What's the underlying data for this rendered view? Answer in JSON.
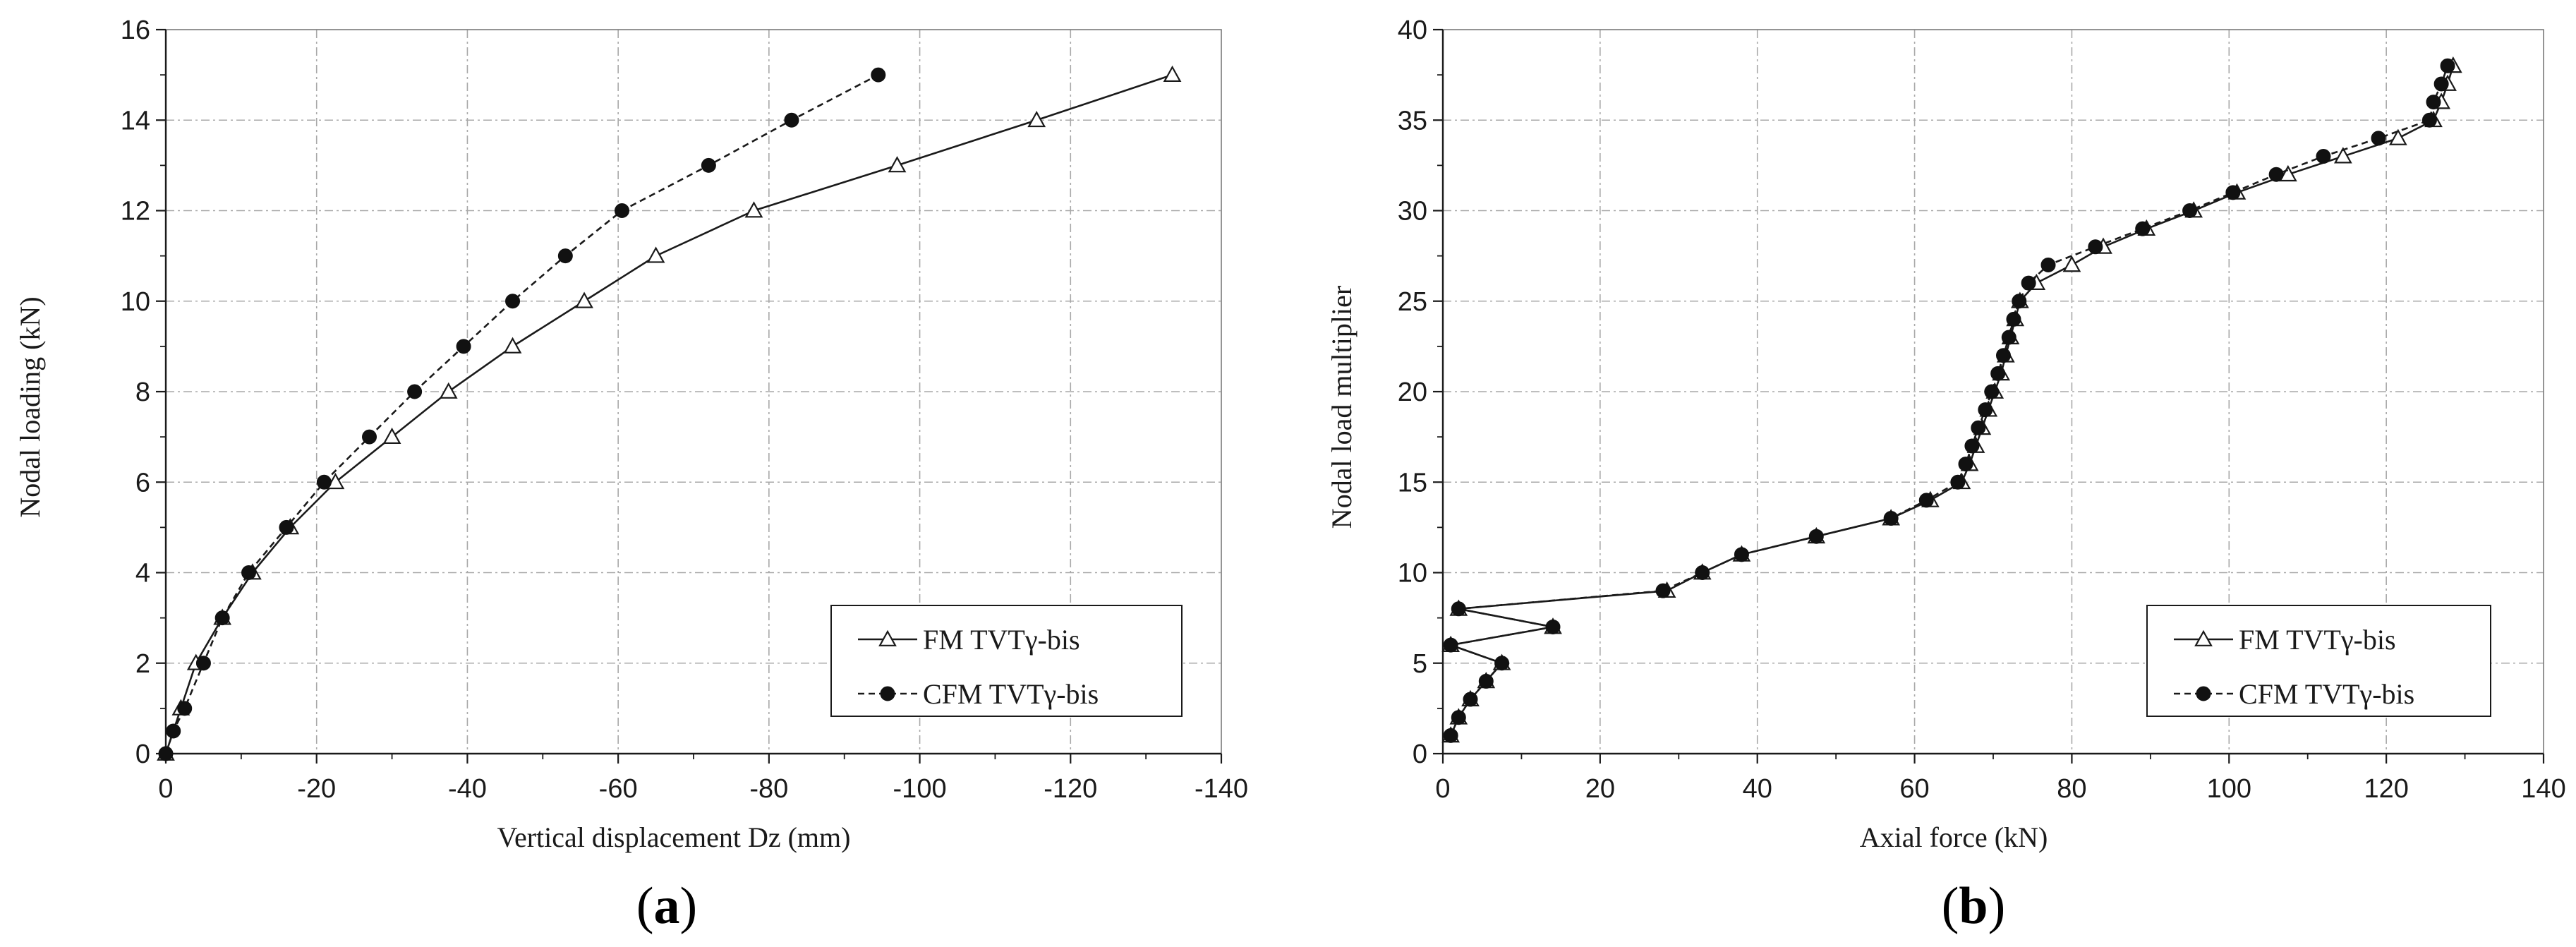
{
  "chart_data": [
    {
      "type": "line",
      "panel_label": "a",
      "title": "",
      "xlabel": "Vertical displacement Dz (mm)",
      "ylabel": "Nodal loading (kN)",
      "xlim": [
        0,
        -140
      ],
      "ylim": [
        0,
        16
      ],
      "x_axis_reversed": true,
      "x_ticks": [
        0,
        -20,
        -40,
        -60,
        -80,
        -100,
        -120,
        -140
      ],
      "y_ticks": [
        0,
        2,
        4,
        6,
        8,
        10,
        12,
        14,
        16
      ],
      "grid": true,
      "legend_position": "bottom-right",
      "series": [
        {
          "name": "FM TVTγ-bis",
          "line_style": "solid",
          "marker": "triangle-open",
          "color": "#1a1a1a",
          "points": [
            [
              0,
              0
            ],
            [
              -2,
              1
            ],
            [
              -4,
              2
            ],
            [
              -7.5,
              3
            ],
            [
              -11.5,
              4
            ],
            [
              -16.5,
              5
            ],
            [
              -22.5,
              6
            ],
            [
              -30,
              7
            ],
            [
              -37.5,
              8
            ],
            [
              -46,
              9
            ],
            [
              -55.5,
              10
            ],
            [
              -65,
              11
            ],
            [
              -78,
              12
            ],
            [
              -97,
              13
            ],
            [
              -115.5,
              14
            ],
            [
              -133.5,
              15
            ]
          ]
        },
        {
          "name": "CFM TVTγ-bis",
          "line_style": "dashed",
          "marker": "circle-filled",
          "color": "#1a1a1a",
          "points": [
            [
              0,
              0
            ],
            [
              -1,
              0.5
            ],
            [
              -2.5,
              1
            ],
            [
              -5,
              2
            ],
            [
              -7.5,
              3
            ],
            [
              -11,
              4
            ],
            [
              -16,
              5
            ],
            [
              -21,
              6
            ],
            [
              -27,
              7
            ],
            [
              -33,
              8
            ],
            [
              -39.5,
              9
            ],
            [
              -46,
              10
            ],
            [
              -53,
              11
            ],
            [
              -60.5,
              12
            ],
            [
              -72,
              13
            ],
            [
              -83,
              14
            ],
            [
              -94.5,
              15
            ]
          ]
        }
      ]
    },
    {
      "type": "line",
      "panel_label": "b",
      "title": "",
      "xlabel": "Axial force (kN)",
      "ylabel": "Nodal load multiplier",
      "xlim": [
        0,
        140
      ],
      "ylim": [
        0,
        40
      ],
      "x_ticks": [
        0,
        20,
        40,
        60,
        80,
        100,
        120,
        140
      ],
      "y_ticks": [
        0,
        5,
        10,
        15,
        20,
        25,
        30,
        35,
        40
      ],
      "grid": true,
      "legend_position": "bottom-right",
      "series": [
        {
          "name": "FM TVTγ-bis",
          "line_style": "solid",
          "marker": "triangle-open",
          "color": "#1a1a1a",
          "points": [
            [
              1,
              1
            ],
            [
              2,
              2
            ],
            [
              3.5,
              3
            ],
            [
              5.5,
              4
            ],
            [
              7.5,
              5
            ],
            [
              1,
              6
            ],
            [
              14,
              7
            ],
            [
              2,
              8
            ],
            [
              28.5,
              9
            ],
            [
              33,
              10
            ],
            [
              38,
              11
            ],
            [
              47.5,
              12
            ],
            [
              57,
              13
            ],
            [
              62,
              14
            ],
            [
              66,
              15
            ],
            [
              67,
              16
            ],
            [
              67.8,
              17
            ],
            [
              68.6,
              18
            ],
            [
              69.4,
              19
            ],
            [
              70.2,
              20
            ],
            [
              71,
              21
            ],
            [
              71.6,
              22
            ],
            [
              72.2,
              23
            ],
            [
              72.8,
              24
            ],
            [
              73.4,
              25
            ],
            [
              75.5,
              26
            ],
            [
              80,
              27
            ],
            [
              84,
              28
            ],
            [
              89.5,
              29
            ],
            [
              95.5,
              30
            ],
            [
              101,
              31
            ],
            [
              107.5,
              32
            ],
            [
              114.5,
              33
            ],
            [
              121.5,
              34
            ],
            [
              126,
              35
            ],
            [
              127,
              36
            ],
            [
              127.8,
              37
            ],
            [
              128.5,
              38
            ]
          ]
        },
        {
          "name": "CFM TVTγ-bis",
          "line_style": "dashed",
          "marker": "circle-filled",
          "color": "#1a1a1a",
          "points": [
            [
              1,
              1
            ],
            [
              2,
              2
            ],
            [
              3.5,
              3
            ],
            [
              5.5,
              4
            ],
            [
              7.5,
              5
            ],
            [
              1,
              6
            ],
            [
              14,
              7
            ],
            [
              2,
              8
            ],
            [
              28,
              9
            ],
            [
              33,
              10
            ],
            [
              38,
              11
            ],
            [
              47.5,
              12
            ],
            [
              57,
              13
            ],
            [
              61.5,
              14
            ],
            [
              65.5,
              15
            ],
            [
              66.5,
              16
            ],
            [
              67.3,
              17
            ],
            [
              68.1,
              18
            ],
            [
              69,
              19
            ],
            [
              69.8,
              20
            ],
            [
              70.6,
              21
            ],
            [
              71.3,
              22
            ],
            [
              72,
              23
            ],
            [
              72.6,
              24
            ],
            [
              73.3,
              25
            ],
            [
              74.5,
              26
            ],
            [
              77,
              27
            ],
            [
              83,
              28
            ],
            [
              89,
              29
            ],
            [
              95,
              30
            ],
            [
              100.5,
              31
            ],
            [
              106,
              32
            ],
            [
              112,
              33
            ],
            [
              119,
              34
            ],
            [
              125.5,
              35
            ],
            [
              126,
              36
            ],
            [
              127,
              37
            ],
            [
              127.8,
              38
            ]
          ]
        }
      ]
    }
  ]
}
